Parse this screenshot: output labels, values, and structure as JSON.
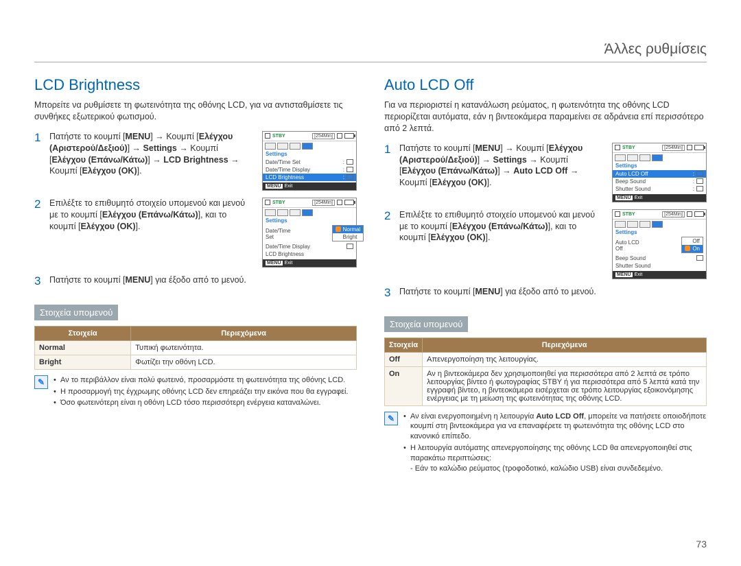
{
  "page": {
    "header": "Άλλες ρυθμίσεις",
    "number": "73"
  },
  "colors": {
    "accent": "#0066b3",
    "menu_highlight": "#2a7de1",
    "table_header": "#9e7a4e",
    "sub_heading_bg": "#9aa7af",
    "stby_green": "#1a8f3a",
    "check_orange": "#fb8c1a"
  },
  "left": {
    "title": "LCD Brightness",
    "intro": "Μπορείτε να ρυθμίσετε τη φωτεινότητα της οθόνης LCD, για να αντισταθμίσετε τις συνθήκες εξωτερικού φωτισμού.",
    "steps": [
      {
        "num": "1",
        "text": "Πατήστε το κουμπί [<b>MENU</b>] → Κουμπί [<b>Ελέγχου (Αριστερού/Δεξιού)</b>] → <b>Settings</b> → Κουμπί [<b>Ελέγχου (Επάνω/Κάτω)</b>] → <b>LCD Brightness</b> → Κουμπί [<b>Ελέγχου (OK)</b>]."
      },
      {
        "num": "2",
        "text": "Επιλέξτε το επιθυμητό στοιχείο υπομενού και μενού με το κουμπί [<b>Ελέγχου (Επάνω/Κάτω)</b>], και το κουμπί [<b>Ελέγχου (OK)</b>]."
      },
      {
        "num": "3",
        "text": "Πατήστε το κουμπί [<b>MENU</b>] για έξοδο από το μενού."
      }
    ],
    "lcd1": {
      "stby": "STBY",
      "time": "[254Min]",
      "settings": "Settings",
      "rows": [
        {
          "label": "Date/Time Set",
          "hl": false
        },
        {
          "label": "Date/Time Display",
          "hl": false
        },
        {
          "label": "LCD Brightness",
          "hl": true
        }
      ],
      "exit": "Exit",
      "menu": "MENU"
    },
    "lcd2": {
      "stby": "STBY",
      "time": "[254Min]",
      "settings": "Settings",
      "rows": [
        {
          "label": "Date/Time Set",
          "hl": false
        },
        {
          "label": "Date/Time Display",
          "hl": false
        },
        {
          "label": "LCD Brightness",
          "hl": false
        }
      ],
      "sub": [
        {
          "label": "Normal",
          "hl": true,
          "chk": true
        },
        {
          "label": "Bright",
          "hl": false,
          "chk": false
        }
      ],
      "exit": "Exit",
      "menu": "MENU"
    },
    "sub_heading": "Στοιχεία υπομενού",
    "table": {
      "head": [
        "Στοιχεία",
        "Περιεχόμενα"
      ],
      "rows": [
        [
          "Normal",
          "Τυπική φωτεινότητα."
        ],
        [
          "Bright",
          "Φωτίζει την οθόνη LCD."
        ]
      ]
    },
    "notes": [
      "Αν το περιβάλλον είναι πολύ φωτεινό, προσαρμόστε τη φωτεινότητα της οθόνης LCD.",
      "Η προσαρμογή της έγχρωμης οθόνης LCD δεν επηρεάζει την εικόνα που θα εγγραφεί.",
      "Όσο φωτεινότερη είναι η οθόνη LCD τόσο περισσότερη ενέργεια καταναλώνει."
    ]
  },
  "right": {
    "title": "Auto LCD Off",
    "intro": "Για να περιοριστεί η κατανάλωση ρεύματος, η φωτεινότητα της οθόνης LCD περιορίζεται αυτόματα, εάν η βιντεοκάμερα παραμείνει σε αδράνεια επί περισσότερο από 2 λεπτά.",
    "steps": [
      {
        "num": "1",
        "text": "Πατήστε το κουμπί [<b>MENU</b>] → Κουμπί [<b>Ελέγχου (Αριστερού/Δεξιού)</b>] → <b>Settings</b> → Κουμπί [<b>Ελέγχου (Επάνω/Κάτω)</b>] → <b>Auto LCD Off</b> → Κουμπί [<b>Ελέγχου (OK)</b>]."
      },
      {
        "num": "2",
        "text": "Επιλέξτε το επιθυμητό στοιχείο υπομενού και μενού με το κουμπί [<b>Ελέγχου (Επάνω/Κάτω)</b>], και το κουμπί [<b>Ελέγχου (OK)</b>]."
      },
      {
        "num": "3",
        "text": "Πατήστε το κουμπί [<b>MENU</b>] για έξοδο από το μενού."
      }
    ],
    "lcd1": {
      "stby": "STBY",
      "time": "[254Min]",
      "settings": "Settings",
      "rows": [
        {
          "label": "Auto LCD Off",
          "hl": true
        },
        {
          "label": "Beep Sound",
          "hl": false
        },
        {
          "label": "Shutter Sound",
          "hl": false
        }
      ],
      "exit": "Exit",
      "menu": "MENU"
    },
    "lcd2": {
      "stby": "STBY",
      "time": "[254Min]",
      "settings": "Settings",
      "rows": [
        {
          "label": "Auto LCD Off",
          "hl": false
        },
        {
          "label": "Beep Sound",
          "hl": false
        },
        {
          "label": "Shutter Sound",
          "hl": false
        }
      ],
      "sub": [
        {
          "label": "Off",
          "hl": false,
          "chk": false
        },
        {
          "label": "On",
          "hl": true,
          "chk": true
        }
      ],
      "exit": "Exit",
      "menu": "MENU"
    },
    "sub_heading": "Στοιχεία υπομενού",
    "table": {
      "head": [
        "Στοιχεία",
        "Περιεχόμενα"
      ],
      "rows": [
        [
          "Off",
          "Απενεργοποίηση της λειτουργίας."
        ],
        [
          "On",
          "Αν η βιντεοκάμερα δεν χρησιμοποιηθεί για περισσότερα από 2 λεπτά σε τρόπο λειτουργίας βίντεο ή φωτογραφίας STBY ή για περισσότερα από 5 λεπτά κατά την εγγραφή βίντεο, η βιντεοκάμερα εισέρχεται σε τρόπο λειτουργίας εξοικονόμησης ενέργειας με τη μείωση της φωτεινότητας της οθόνης LCD."
        ]
      ]
    },
    "notes": [
      "Αν είναι ενεργοποιημένη η λειτουργία <b>Auto LCD Off</b>, μπορείτε να πατήσετε οποιοδήποτε κουμπί στη βιντεοκάμερα για να επαναφέρετε τη φωτεινότητα της οθόνης LCD στο κανονικό επίπεδο.",
      "Η λειτουργία αυτόματης απενεργοποίησης της οθόνης LCD θα απενεργοποιηθεί στις παρακάτω περιπτώσεις:<br>- Εάν το καλώδιο ρεύματος (τροφοδοτικό, καλώδιο USB) είναι συνδεδεμένο."
    ]
  }
}
